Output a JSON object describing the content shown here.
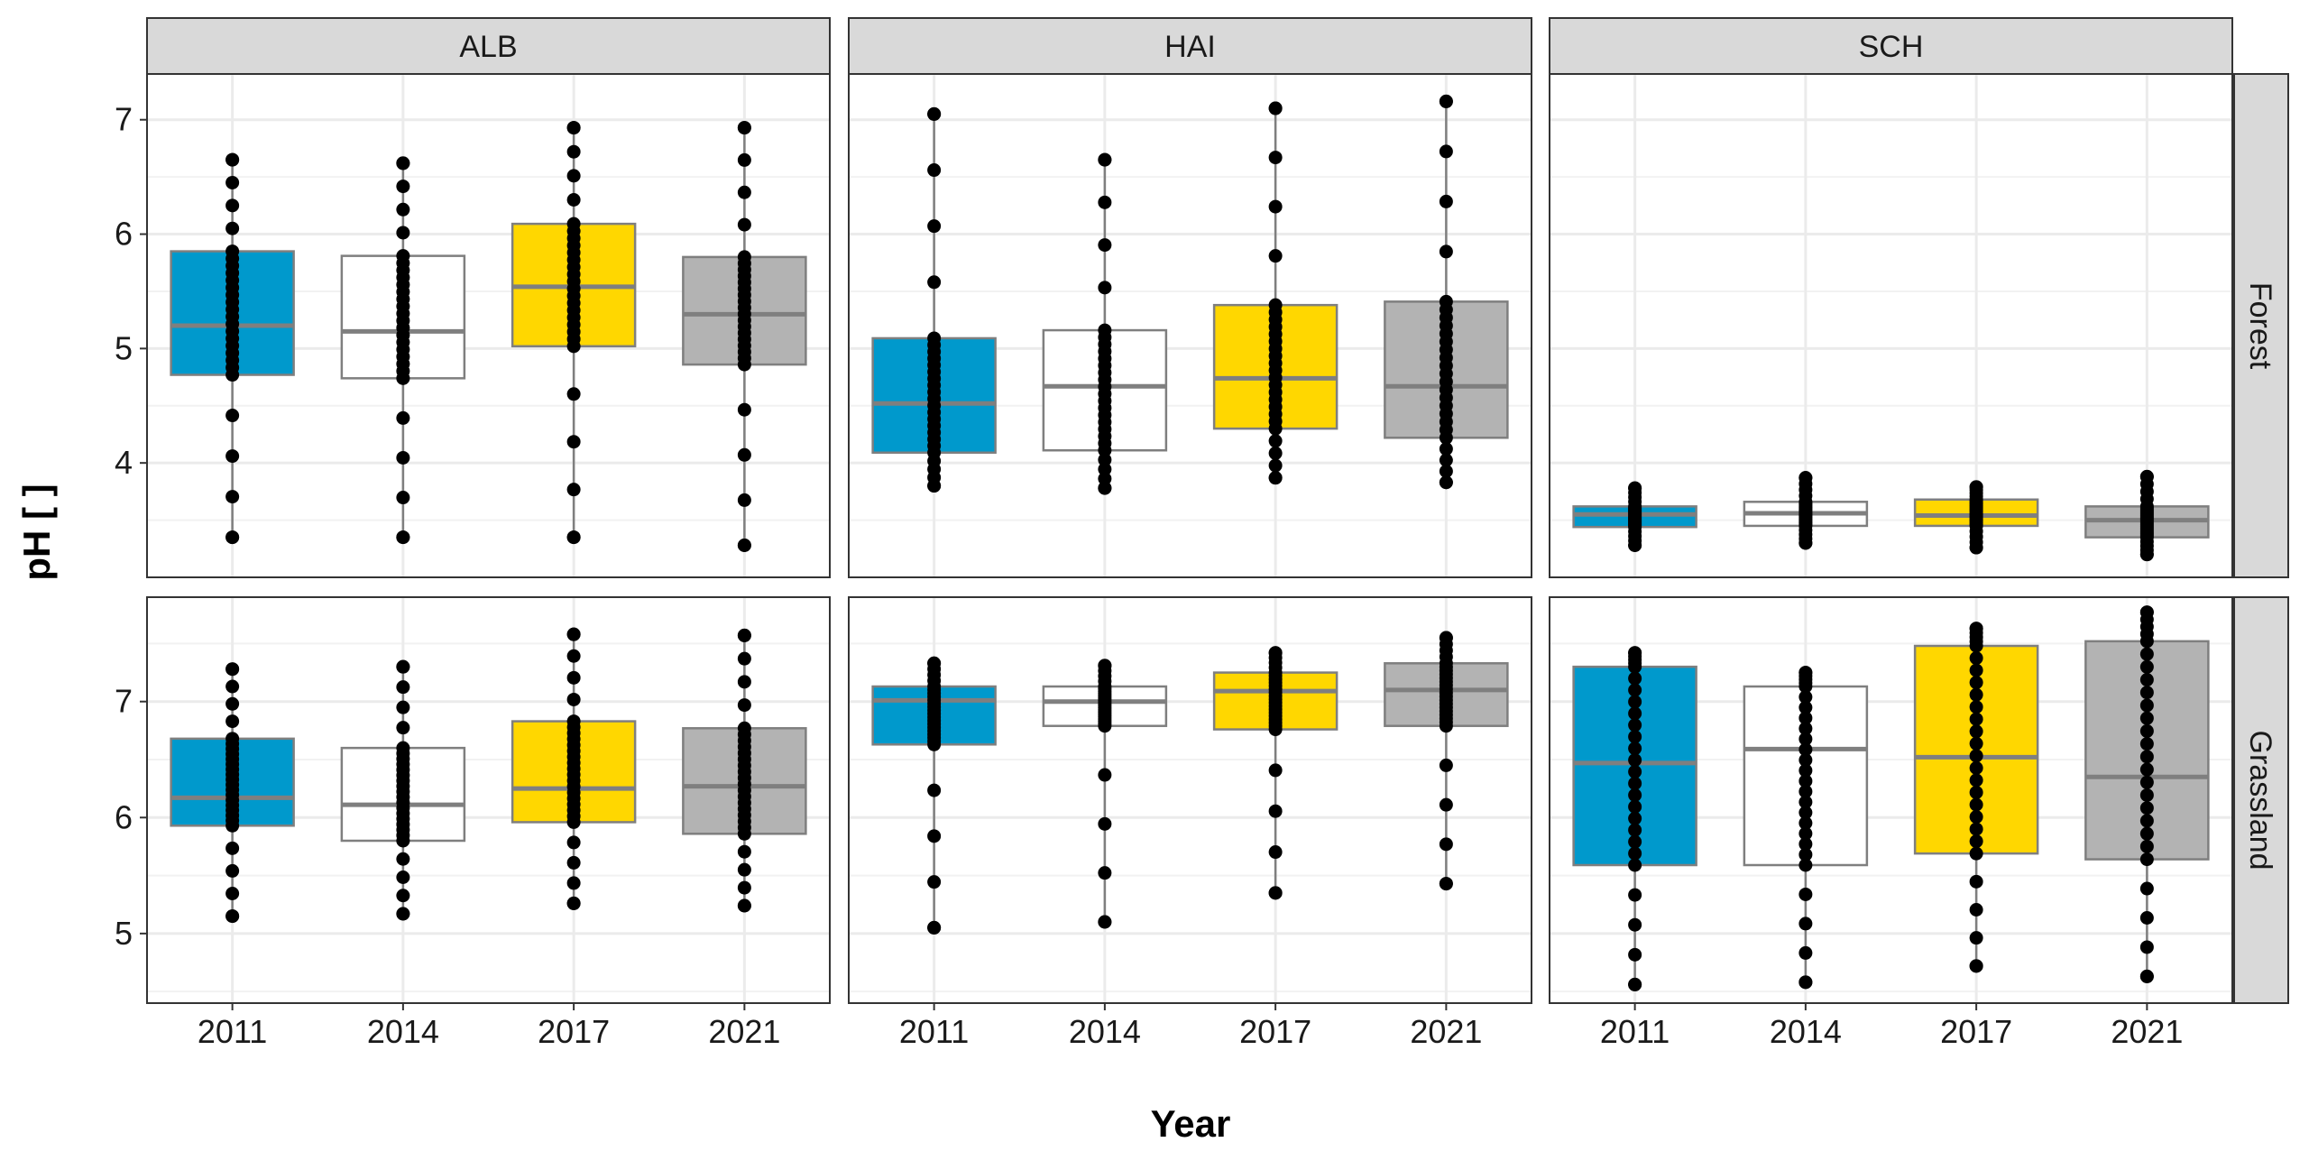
{
  "chart_data": {
    "type": "boxplot",
    "facet_columns": [
      "ALB",
      "HAI",
      "SCH"
    ],
    "facet_rows": [
      "Forest",
      "Grassland"
    ],
    "xlabel": "Year",
    "ylabel": "pH [ ]",
    "categories": [
      "2011",
      "2014",
      "2017",
      "2021"
    ],
    "category_colors": {
      "2011": "#0099CC",
      "2014": "#FFFFFF",
      "2017": "#FFD700",
      "2021": "#B3B3B3"
    },
    "rows": {
      "Forest": {
        "ylim": [
          3.0,
          7.4
        ],
        "yticks": [
          4,
          5,
          6,
          7
        ]
      },
      "Grassland": {
        "ylim": [
          4.4,
          7.9
        ],
        "yticks": [
          5,
          6,
          7
        ]
      }
    },
    "grid": true,
    "legend": "none",
    "panels": [
      {
        "column": "ALB",
        "row": "Forest",
        "boxes": [
          {
            "year": "2011",
            "min": 3.35,
            "q1": 4.77,
            "median": 5.2,
            "q3": 5.85,
            "max": 6.65
          },
          {
            "year": "2014",
            "min": 3.35,
            "q1": 4.74,
            "median": 5.15,
            "q3": 5.81,
            "max": 6.62
          },
          {
            "year": "2017",
            "min": 3.35,
            "q1": 5.02,
            "median": 5.54,
            "q3": 6.09,
            "max": 6.93
          },
          {
            "year": "2021",
            "min": 3.28,
            "q1": 4.86,
            "median": 5.3,
            "q3": 5.8,
            "max": 6.93
          }
        ]
      },
      {
        "column": "HAI",
        "row": "Forest",
        "boxes": [
          {
            "year": "2011",
            "min": 3.8,
            "q1": 4.09,
            "median": 4.52,
            "q3": 5.09,
            "max": 7.05
          },
          {
            "year": "2014",
            "min": 3.78,
            "q1": 4.11,
            "median": 4.67,
            "q3": 5.16,
            "max": 6.65
          },
          {
            "year": "2017",
            "min": 3.87,
            "q1": 4.3,
            "median": 4.74,
            "q3": 5.38,
            "max": 7.1
          },
          {
            "year": "2021",
            "min": 3.83,
            "q1": 4.22,
            "median": 4.67,
            "q3": 5.41,
            "max": 7.16
          }
        ]
      },
      {
        "column": "SCH",
        "row": "Forest",
        "boxes": [
          {
            "year": "2011",
            "min": 3.28,
            "q1": 3.44,
            "median": 3.55,
            "q3": 3.62,
            "max": 3.78
          },
          {
            "year": "2014",
            "min": 3.3,
            "q1": 3.45,
            "median": 3.56,
            "q3": 3.66,
            "max": 3.87
          },
          {
            "year": "2017",
            "min": 3.26,
            "q1": 3.45,
            "median": 3.54,
            "q3": 3.68,
            "max": 3.79
          },
          {
            "year": "2021",
            "min": 3.2,
            "q1": 3.35,
            "median": 3.5,
            "q3": 3.62,
            "max": 3.88
          }
        ]
      },
      {
        "column": "ALB",
        "row": "Grassland",
        "boxes": [
          {
            "year": "2011",
            "min": 5.15,
            "q1": 5.93,
            "median": 6.17,
            "q3": 6.68,
            "max": 7.28
          },
          {
            "year": "2014",
            "min": 5.17,
            "q1": 5.8,
            "median": 6.11,
            "q3": 6.6,
            "max": 7.3
          },
          {
            "year": "2017",
            "min": 5.26,
            "q1": 5.96,
            "median": 6.25,
            "q3": 6.83,
            "max": 7.58
          },
          {
            "year": "2021",
            "min": 5.24,
            "q1": 5.86,
            "median": 6.27,
            "q3": 6.77,
            "max": 7.57
          }
        ]
      },
      {
        "column": "HAI",
        "row": "Grassland",
        "boxes": [
          {
            "year": "2011",
            "min": 5.05,
            "q1": 6.63,
            "median": 7.01,
            "q3": 7.13,
            "max": 7.33
          },
          {
            "year": "2014",
            "min": 5.1,
            "q1": 6.79,
            "median": 7.0,
            "q3": 7.13,
            "max": 7.31
          },
          {
            "year": "2017",
            "min": 5.35,
            "q1": 6.76,
            "median": 7.09,
            "q3": 7.25,
            "max": 7.42
          },
          {
            "year": "2021",
            "min": 5.43,
            "q1": 6.79,
            "median": 7.1,
            "q3": 7.33,
            "max": 7.55
          }
        ]
      },
      {
        "column": "SCH",
        "row": "Grassland",
        "boxes": [
          {
            "year": "2011",
            "min": 4.56,
            "q1": 5.59,
            "median": 6.47,
            "q3": 7.3,
            "max": 7.42
          },
          {
            "year": "2014",
            "min": 4.58,
            "q1": 5.59,
            "median": 6.59,
            "q3": 7.13,
            "max": 7.25
          },
          {
            "year": "2017",
            "min": 4.72,
            "q1": 5.69,
            "median": 6.52,
            "q3": 7.48,
            "max": 7.63
          },
          {
            "year": "2021",
            "min": 4.63,
            "q1": 5.64,
            "median": 6.35,
            "q3": 7.52,
            "max": 7.77
          }
        ]
      }
    ]
  }
}
